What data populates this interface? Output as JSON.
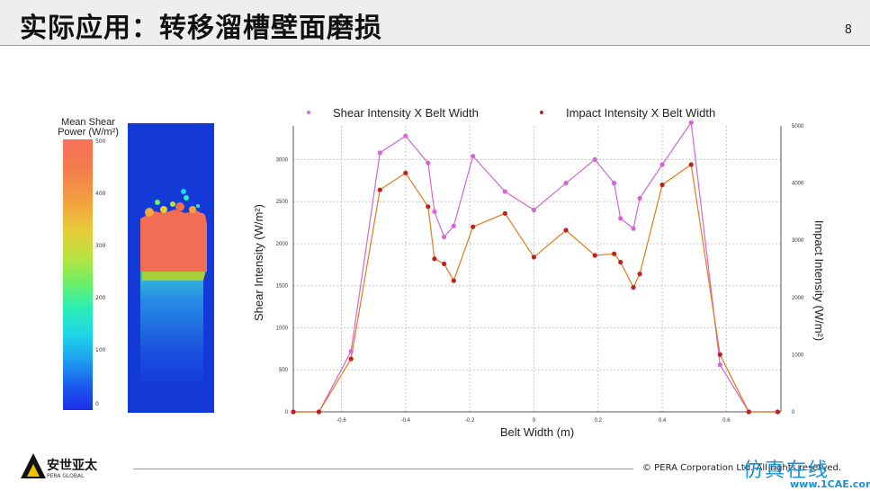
{
  "slide": {
    "title": "实际应用：转移溜槽壁面磨损",
    "page_number": "8",
    "copyright": "© PERA Corporation Ltd. All rights reserved.",
    "logo_text": "安世亚太",
    "logo_subtext": "PERA GLOBAL",
    "watermark": "仿真在线",
    "watermark_url": "www.1CAE.com"
  },
  "colorbar": {
    "title_line1": "Mean Shear",
    "title_line2": "Power (W/m²)",
    "ticks": [
      "500",
      "400",
      "300",
      "200",
      "100",
      "0"
    ]
  },
  "chart_data": {
    "type": "line",
    "xlabel": "Belt Width (m)",
    "ylabel": "Shear Intensity (W/m²)",
    "y2label": "Impact Intensity (W/m²)",
    "x_ticks": [
      "-0.6",
      "-0.4",
      "-0.2",
      "0",
      "0.2",
      "0.4",
      "0.6"
    ],
    "y_ticks": [
      "0",
      "500",
      "1000",
      "1500",
      "2000",
      "2500",
      "3000"
    ],
    "y2_ticks": [
      "0",
      "1000",
      "2000",
      "3000",
      "4000",
      "5000"
    ],
    "xlim": [
      -0.75,
      0.77
    ],
    "ylim": [
      0,
      3400
    ],
    "y2lim": [
      0,
      5000
    ],
    "grid": true,
    "legend_position": "top",
    "series": [
      {
        "name": "Shear Intensity X Belt Width",
        "color": "#d665d6",
        "axis": "left",
        "x": [
          -0.75,
          -0.67,
          -0.57,
          -0.48,
          -0.4,
          -0.33,
          -0.31,
          -0.28,
          -0.25,
          -0.19,
          -0.09,
          0.0,
          0.1,
          0.19,
          0.25,
          0.27,
          0.31,
          0.33,
          0.4,
          0.49,
          0.58,
          0.67,
          0.76
        ],
        "y": [
          0,
          0,
          720,
          3080,
          3280,
          2960,
          2380,
          2080,
          2210,
          3040,
          2620,
          2400,
          2720,
          3000,
          2720,
          2300,
          2180,
          2540,
          2940,
          3440,
          560,
          0,
          0
        ]
      },
      {
        "name": "Impact Intensity X Belt Width",
        "color": "#c02020",
        "line_color": "#e07a1a",
        "axis": "left",
        "x": [
          -0.75,
          -0.67,
          -0.57,
          -0.48,
          -0.4,
          -0.33,
          -0.31,
          -0.28,
          -0.25,
          -0.19,
          -0.09,
          0.0,
          0.1,
          0.19,
          0.25,
          0.27,
          0.31,
          0.33,
          0.4,
          0.49,
          0.58,
          0.67,
          0.76
        ],
        "y": [
          0,
          0,
          630,
          2640,
          2840,
          2440,
          1820,
          1760,
          1560,
          2200,
          2360,
          1840,
          2160,
          1860,
          1880,
          1780,
          1480,
          1640,
          2700,
          2940,
          680,
          0,
          0
        ]
      }
    ]
  }
}
